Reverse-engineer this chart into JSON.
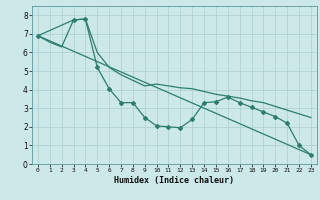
{
  "xlabel": "Humidex (Indice chaleur)",
  "ylabel": "",
  "background_color": "#cce8e8",
  "grid_color": "#aacfcf",
  "line_color": "#2e7d6e",
  "xlim": [
    -0.5,
    23.5
  ],
  "ylim": [
    0,
    8.5
  ],
  "xticks": [
    0,
    1,
    2,
    3,
    4,
    5,
    6,
    7,
    8,
    9,
    10,
    11,
    12,
    13,
    14,
    15,
    16,
    17,
    18,
    19,
    20,
    21,
    22,
    23
  ],
  "yticks": [
    0,
    1,
    2,
    3,
    4,
    5,
    6,
    7,
    8
  ],
  "series_smooth": {
    "x": [
      0,
      1,
      2,
      3,
      4,
      5,
      6,
      7,
      8,
      9,
      10,
      11,
      12,
      13,
      14,
      15,
      16,
      17,
      18,
      19,
      20,
      21,
      22,
      23
    ],
    "y": [
      6.9,
      6.55,
      6.3,
      7.75,
      7.8,
      6.0,
      5.2,
      4.8,
      4.5,
      4.2,
      4.3,
      4.2,
      4.1,
      4.05,
      3.9,
      3.75,
      3.65,
      3.55,
      3.4,
      3.3,
      3.1,
      2.9,
      2.7,
      2.5
    ]
  },
  "series_markers": {
    "x": [
      0,
      3,
      4,
      5,
      6,
      7,
      8,
      9,
      10,
      11,
      12,
      13,
      14,
      15,
      16,
      17,
      18,
      19,
      20,
      21,
      22,
      23
    ],
    "y": [
      6.9,
      7.75,
      7.8,
      5.2,
      4.05,
      3.3,
      3.3,
      2.5,
      2.05,
      2.0,
      1.95,
      2.4,
      3.3,
      3.35,
      3.6,
      3.3,
      3.05,
      2.8,
      2.55,
      2.2,
      1.0,
      0.5
    ]
  },
  "series_diagonal": {
    "x": [
      0,
      23
    ],
    "y": [
      6.9,
      0.5
    ]
  }
}
